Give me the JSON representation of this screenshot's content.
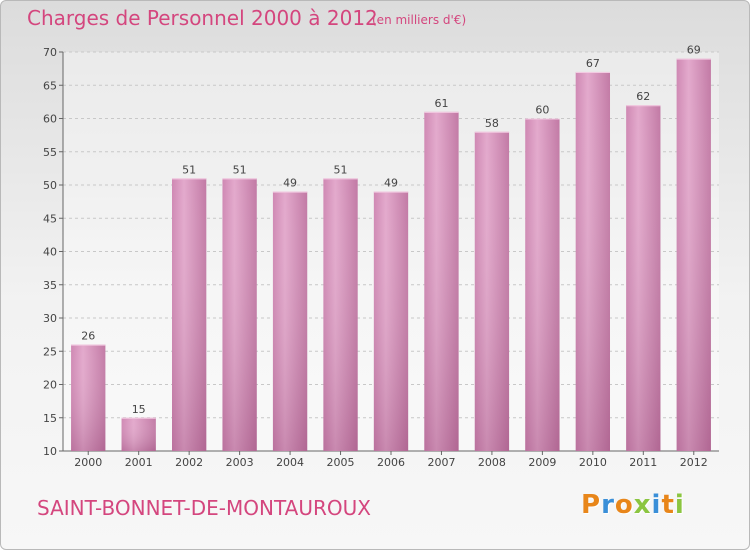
{
  "chart_data": {
    "type": "bar",
    "title": "Charges de Personnel 2000 à 2012",
    "subtitle": "(en milliers d'€)",
    "categories": [
      "2000",
      "2001",
      "2002",
      "2003",
      "2004",
      "2005",
      "2006",
      "2007",
      "2008",
      "2009",
      "2010",
      "2011",
      "2012"
    ],
    "values": [
      26,
      15,
      51,
      51,
      49,
      51,
      49,
      61,
      58,
      60,
      67,
      62,
      69
    ],
    "ylim": [
      10,
      70
    ],
    "yticks": [
      10,
      15,
      20,
      25,
      30,
      35,
      40,
      45,
      50,
      55,
      60,
      65,
      70
    ],
    "grid": true,
    "bar_color": "#c06c9c"
  },
  "footer": {
    "commune": "SAINT-BONNET-DE-MONTAUROUX",
    "logo": {
      "letters": [
        {
          "char": "P",
          "color": "#e8861a"
        },
        {
          "char": "r",
          "color": "#3a8fd8"
        },
        {
          "char": "o",
          "color": "#e8861a"
        },
        {
          "char": "x",
          "color": "#8bc540"
        },
        {
          "char": "i",
          "color": "#3a8fd8"
        },
        {
          "char": "t",
          "color": "#e8861a"
        },
        {
          "char": "i",
          "color": "#8bc540"
        }
      ]
    }
  }
}
